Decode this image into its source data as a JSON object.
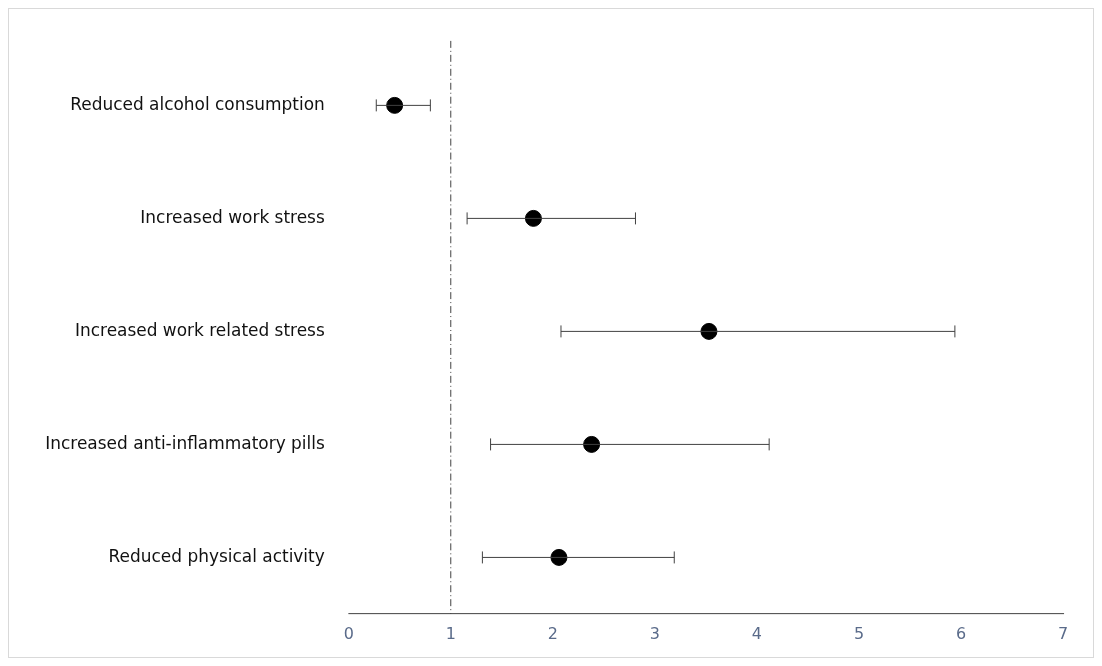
{
  "chart_data": {
    "type": "scatter",
    "orientation": "horizontal",
    "categories": [
      "Reduced alcohol consumption",
      "Increased work stress",
      "Increased work related stress",
      "Increased anti-inflammatory pills",
      "Reduced physical activity"
    ],
    "values": [
      0.45,
      1.81,
      3.53,
      2.38,
      2.06
    ],
    "errors": [
      [
        0.27,
        0.8
      ],
      [
        1.16,
        2.81
      ],
      [
        2.08,
        5.94
      ],
      [
        1.39,
        4.12
      ],
      [
        1.31,
        3.19
      ]
    ],
    "color": "#000000",
    "marker": "circle",
    "xlim": [
      0,
      7
    ],
    "xticks": [
      0,
      1,
      2,
      3,
      4,
      5,
      6,
      7
    ],
    "ref_lines": [
      {
        "axis": "x",
        "value": 1,
        "color": "#404040"
      }
    ],
    "grid": false
  }
}
